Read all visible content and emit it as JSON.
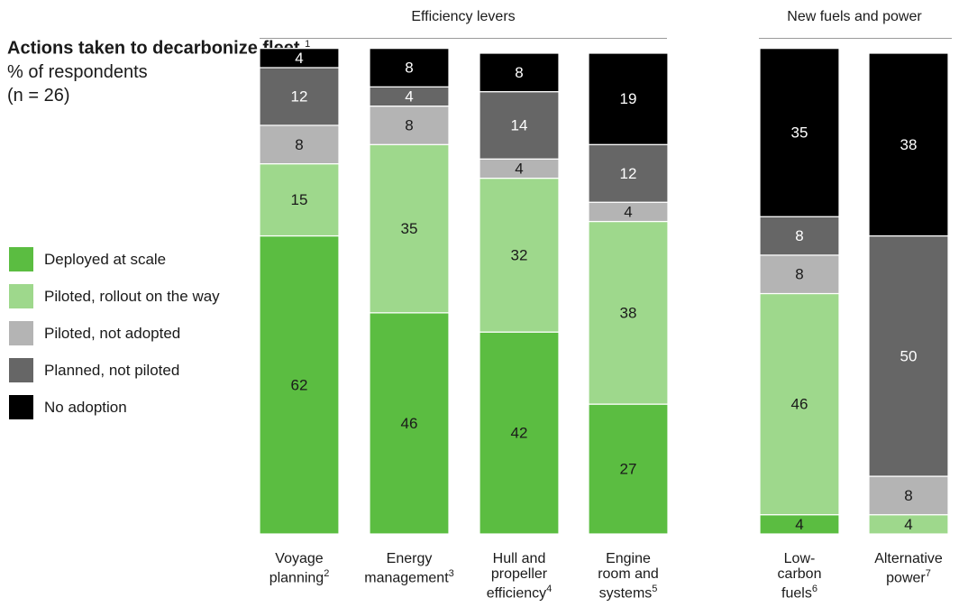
{
  "title": {
    "bold": "Actions taken to decarbonize fleet,",
    "bold_sup": "1",
    "line2": "% of respondents",
    "line3": "(n = 26)"
  },
  "legend": [
    {
      "label": "Deployed at scale",
      "color": "#5bbd41"
    },
    {
      "label": "Piloted, rollout on the way",
      "color": "#9ed88c"
    },
    {
      "label": "Piloted, not adopted",
      "color": "#b4b4b4"
    },
    {
      "label": "Planned, not piloted",
      "color": "#666666"
    },
    {
      "label": "No adoption",
      "color": "#000000"
    }
  ],
  "groups": [
    {
      "label": "Efficiency levers"
    },
    {
      "label": "New fuels and power"
    }
  ],
  "chart_data": {
    "type": "bar",
    "stacked": true,
    "ylim": [
      0,
      100
    ],
    "categories": [
      {
        "lines": [
          "Voyage",
          "planning"
        ],
        "sup": "2",
        "group": "Efficiency levers"
      },
      {
        "lines": [
          "Energy",
          "management"
        ],
        "sup": "3",
        "group": "Efficiency levers"
      },
      {
        "lines": [
          "Hull and",
          "propeller",
          "efficiency"
        ],
        "sup": "4",
        "group": "Efficiency levers"
      },
      {
        "lines": [
          "Engine",
          "room and",
          "systems"
        ],
        "sup": "5",
        "group": "Efficiency levers"
      },
      {
        "lines": [
          "Low-",
          "carbon",
          "fuels"
        ],
        "sup": "6",
        "group": "New fuels and power"
      },
      {
        "lines": [
          "Alternative",
          "power"
        ],
        "sup": "7",
        "group": "New fuels and power"
      }
    ],
    "series": [
      {
        "name": "Deployed at scale",
        "color": "#5bbd41",
        "label_color": "#1a1a1a",
        "values": [
          62,
          46,
          42,
          27,
          4,
          0
        ]
      },
      {
        "name": "Piloted, rollout on the way",
        "color": "#9ed88c",
        "label_color": "#1a1a1a",
        "values": [
          15,
          35,
          32,
          38,
          46,
          4
        ]
      },
      {
        "name": "Piloted, not adopted",
        "color": "#b4b4b4",
        "label_color": "#1a1a1a",
        "values": [
          8,
          8,
          4,
          4,
          8,
          8
        ]
      },
      {
        "name": "Planned, not piloted",
        "color": "#666666",
        "label_color": "#ffffff",
        "values": [
          12,
          4,
          14,
          12,
          8,
          50
        ]
      },
      {
        "name": "No adoption",
        "color": "#000000",
        "label_color": "#ffffff",
        "values": [
          4,
          8,
          8,
          19,
          35,
          38
        ]
      }
    ]
  }
}
